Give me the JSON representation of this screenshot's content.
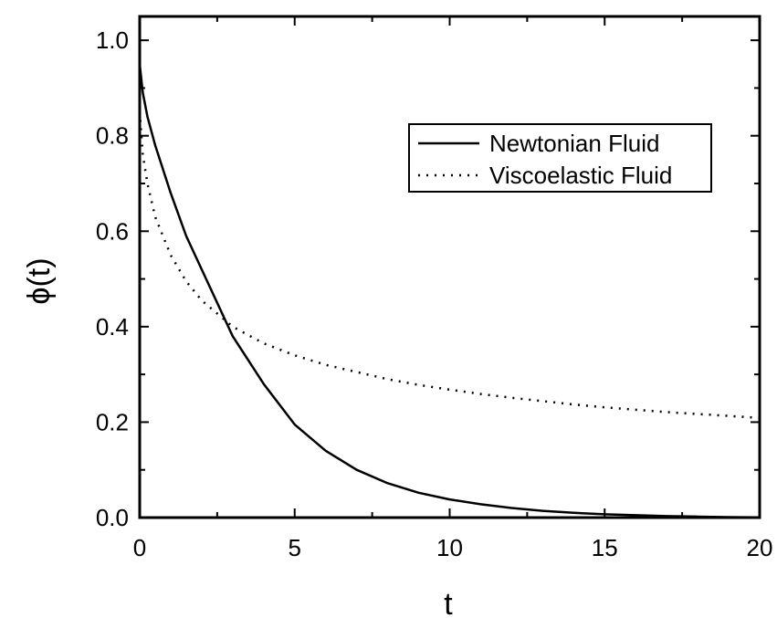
{
  "chart_data": {
    "type": "line",
    "xlabel": "t",
    "ylabel": "ϕ(t)",
    "xlim": [
      0,
      20
    ],
    "ylim": [
      0,
      1.05
    ],
    "x_ticks": [
      0,
      5,
      10,
      15,
      20
    ],
    "y_ticks": [
      0.0,
      0.2,
      0.4,
      0.6,
      0.8,
      1.0
    ],
    "x_tick_labels": [
      "0",
      "5",
      "10",
      "15",
      "20"
    ],
    "y_tick_labels": [
      "0.0",
      "0.2",
      "0.4",
      "0.6",
      "0.8",
      "1.0"
    ],
    "grid": false,
    "legend_position": "top-right",
    "series": [
      {
        "name": "Newtonian Fluid",
        "style": "solid",
        "color": "#000000",
        "x": [
          0,
          0.1,
          0.25,
          0.5,
          1,
          1.5,
          2,
          3,
          4,
          5,
          6,
          7,
          8,
          9,
          10,
          11,
          12,
          13,
          14,
          15,
          16,
          17,
          18,
          19,
          20
        ],
        "y": [
          0.95,
          0.89,
          0.84,
          0.78,
          0.68,
          0.59,
          0.52,
          0.38,
          0.28,
          0.195,
          0.14,
          0.1,
          0.072,
          0.052,
          0.038,
          0.028,
          0.02,
          0.014,
          0.01,
          0.007,
          0.005,
          0.003,
          0.002,
          0.001,
          0.0005
        ]
      },
      {
        "name": "Viscoelastic Fluid",
        "style": "dotted",
        "color": "#000000",
        "x": [
          0,
          0.1,
          0.25,
          0.5,
          1,
          1.5,
          2,
          3,
          4,
          5,
          6,
          7,
          8,
          9,
          10,
          11,
          12,
          13,
          14,
          15,
          16,
          17,
          18,
          19,
          20
        ],
        "y": [
          0.85,
          0.76,
          0.7,
          0.63,
          0.55,
          0.495,
          0.455,
          0.4,
          0.365,
          0.34,
          0.32,
          0.305,
          0.29,
          0.278,
          0.268,
          0.259,
          0.251,
          0.244,
          0.237,
          0.231,
          0.226,
          0.221,
          0.217,
          0.213,
          0.209
        ]
      }
    ]
  }
}
